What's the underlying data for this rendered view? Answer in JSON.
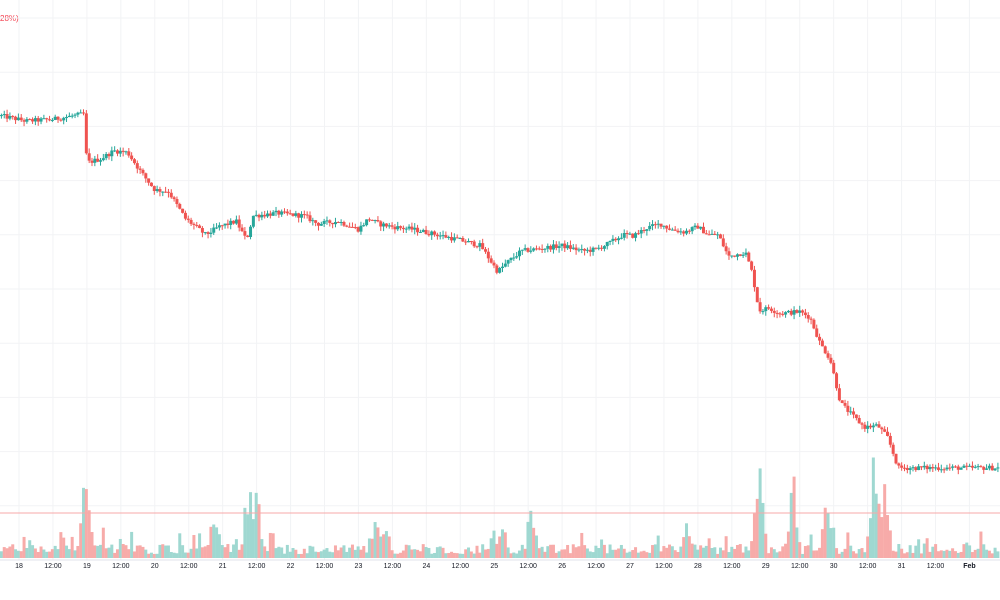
{
  "header": {
    "change_label": "28%)"
  },
  "chart_data": {
    "type": "candlestick",
    "title": "",
    "xlabel": "",
    "ylabel": "",
    "grid": true,
    "legend": "none",
    "colors": {
      "up": "#26a69a",
      "down": "#ef5350",
      "up_volume": "#9fd8d1",
      "down_volume": "#f7aba9",
      "grid": "#f2f3f5",
      "axis_text": "#131722",
      "price_line": "#f7a8a8"
    },
    "x_ticks": [
      {
        "label": "18",
        "x": 0.5
      },
      {
        "label": "12:00",
        "x": 1.0
      },
      {
        "label": "19",
        "x": 1.5
      },
      {
        "label": "12:00",
        "x": 2.0
      },
      {
        "label": "20",
        "x": 2.5
      },
      {
        "label": "12:00",
        "x": 3.0
      },
      {
        "label": "21",
        "x": 3.5
      },
      {
        "label": "12:00",
        "x": 4.0
      },
      {
        "label": "22",
        "x": 4.5
      },
      {
        "label": "12:00",
        "x": 5.0
      },
      {
        "label": "23",
        "x": 5.5
      },
      {
        "label": "12:00",
        "x": 6.0
      },
      {
        "label": "24",
        "x": 6.5
      },
      {
        "label": "12:00",
        "x": 7.0
      },
      {
        "label": "25",
        "x": 7.5
      },
      {
        "label": "12:00",
        "x": 8.0
      },
      {
        "label": "26",
        "x": 8.5
      },
      {
        "label": "12:00",
        "x": 9.0
      },
      {
        "label": "27",
        "x": 9.5
      },
      {
        "label": "12:00",
        "x": 10.0
      },
      {
        "label": "28",
        "x": 10.5
      },
      {
        "label": "12:00",
        "x": 11.0
      },
      {
        "label": "29",
        "x": 11.5
      },
      {
        "label": "12:00",
        "x": 12.0
      },
      {
        "label": "30",
        "x": 12.5
      },
      {
        "label": "12:00",
        "x": 13.0
      },
      {
        "label": "31",
        "x": 13.5
      },
      {
        "label": "12:00",
        "x": 14.0
      },
      {
        "label": "Feb",
        "x": 14.5
      }
    ],
    "x_range": [
      0.22,
      14.95
    ],
    "y_range": [
      0,
      100
    ],
    "volume_range": [
      0,
      140
    ],
    "key_points": [
      [
        0.22,
        82.0
      ],
      [
        0.6,
        81.0
      ],
      [
        1.0,
        81.3
      ],
      [
        1.45,
        82.3
      ],
      [
        1.5,
        73.3
      ],
      [
        1.7,
        74.0
      ],
      [
        1.9,
        75.5
      ],
      [
        2.1,
        75.2
      ],
      [
        2.3,
        71.5
      ],
      [
        2.5,
        68.3
      ],
      [
        2.7,
        68.0
      ],
      [
        2.95,
        63.0
      ],
      [
        3.25,
        60.0
      ],
      [
        3.45,
        61.5
      ],
      [
        3.7,
        62.5
      ],
      [
        3.85,
        59.0
      ],
      [
        3.95,
        63.5
      ],
      [
        4.3,
        64.0
      ],
      [
        4.7,
        63.5
      ],
      [
        4.9,
        62.0
      ],
      [
        5.2,
        62.5
      ],
      [
        5.5,
        61.0
      ],
      [
        5.65,
        63.0
      ],
      [
        5.8,
        62.0
      ],
      [
        6.0,
        61.5
      ],
      [
        6.3,
        61.0
      ],
      [
        6.6,
        60.2
      ],
      [
        7.0,
        59.0
      ],
      [
        7.3,
        58.0
      ],
      [
        7.55,
        53.2
      ],
      [
        7.7,
        55.0
      ],
      [
        7.9,
        57.0
      ],
      [
        8.2,
        57.5
      ],
      [
        8.5,
        58.0
      ],
      [
        8.8,
        57.0
      ],
      [
        9.0,
        57.3
      ],
      [
        9.2,
        58.5
      ],
      [
        9.4,
        60.0
      ],
      [
        9.55,
        59.8
      ],
      [
        9.75,
        61.3
      ],
      [
        9.95,
        62.0
      ],
      [
        10.1,
        61.0
      ],
      [
        10.3,
        60.5
      ],
      [
        10.5,
        61.5
      ],
      [
        10.65,
        60.0
      ],
      [
        10.8,
        60.0
      ],
      [
        10.95,
        56.0
      ],
      [
        11.2,
        56.8
      ],
      [
        11.3,
        53.0
      ],
      [
        11.4,
        46.0
      ],
      [
        11.55,
        46.5
      ],
      [
        11.7,
        45.5
      ],
      [
        12.0,
        45.8
      ],
      [
        12.15,
        44.8
      ],
      [
        12.3,
        40.0
      ],
      [
        12.45,
        37.0
      ],
      [
        12.6,
        29.0
      ],
      [
        12.75,
        27.0
      ],
      [
        12.95,
        24.5
      ],
      [
        13.15,
        24.8
      ],
      [
        13.3,
        22.5
      ],
      [
        13.45,
        17.0
      ]
    ],
    "volume_peaks": [
      {
        "x": 1.48,
        "v": 98
      },
      {
        "x": 3.38,
        "v": 49
      },
      {
        "x": 3.9,
        "v": 75
      },
      {
        "x": 4.0,
        "v": 78
      },
      {
        "x": 5.78,
        "v": 44
      },
      {
        "x": 5.9,
        "v": 36
      },
      {
        "x": 7.62,
        "v": 37
      },
      {
        "x": 8.05,
        "v": 56
      },
      {
        "x": 10.35,
        "v": 40
      },
      {
        "x": 11.4,
        "v": 101
      },
      {
        "x": 11.9,
        "v": 88
      },
      {
        "x": 12.4,
        "v": 65
      },
      {
        "x": 13.1,
        "v": 108
      },
      {
        "x": 13.25,
        "v": 86
      }
    ],
    "price_line_level": 3
  }
}
